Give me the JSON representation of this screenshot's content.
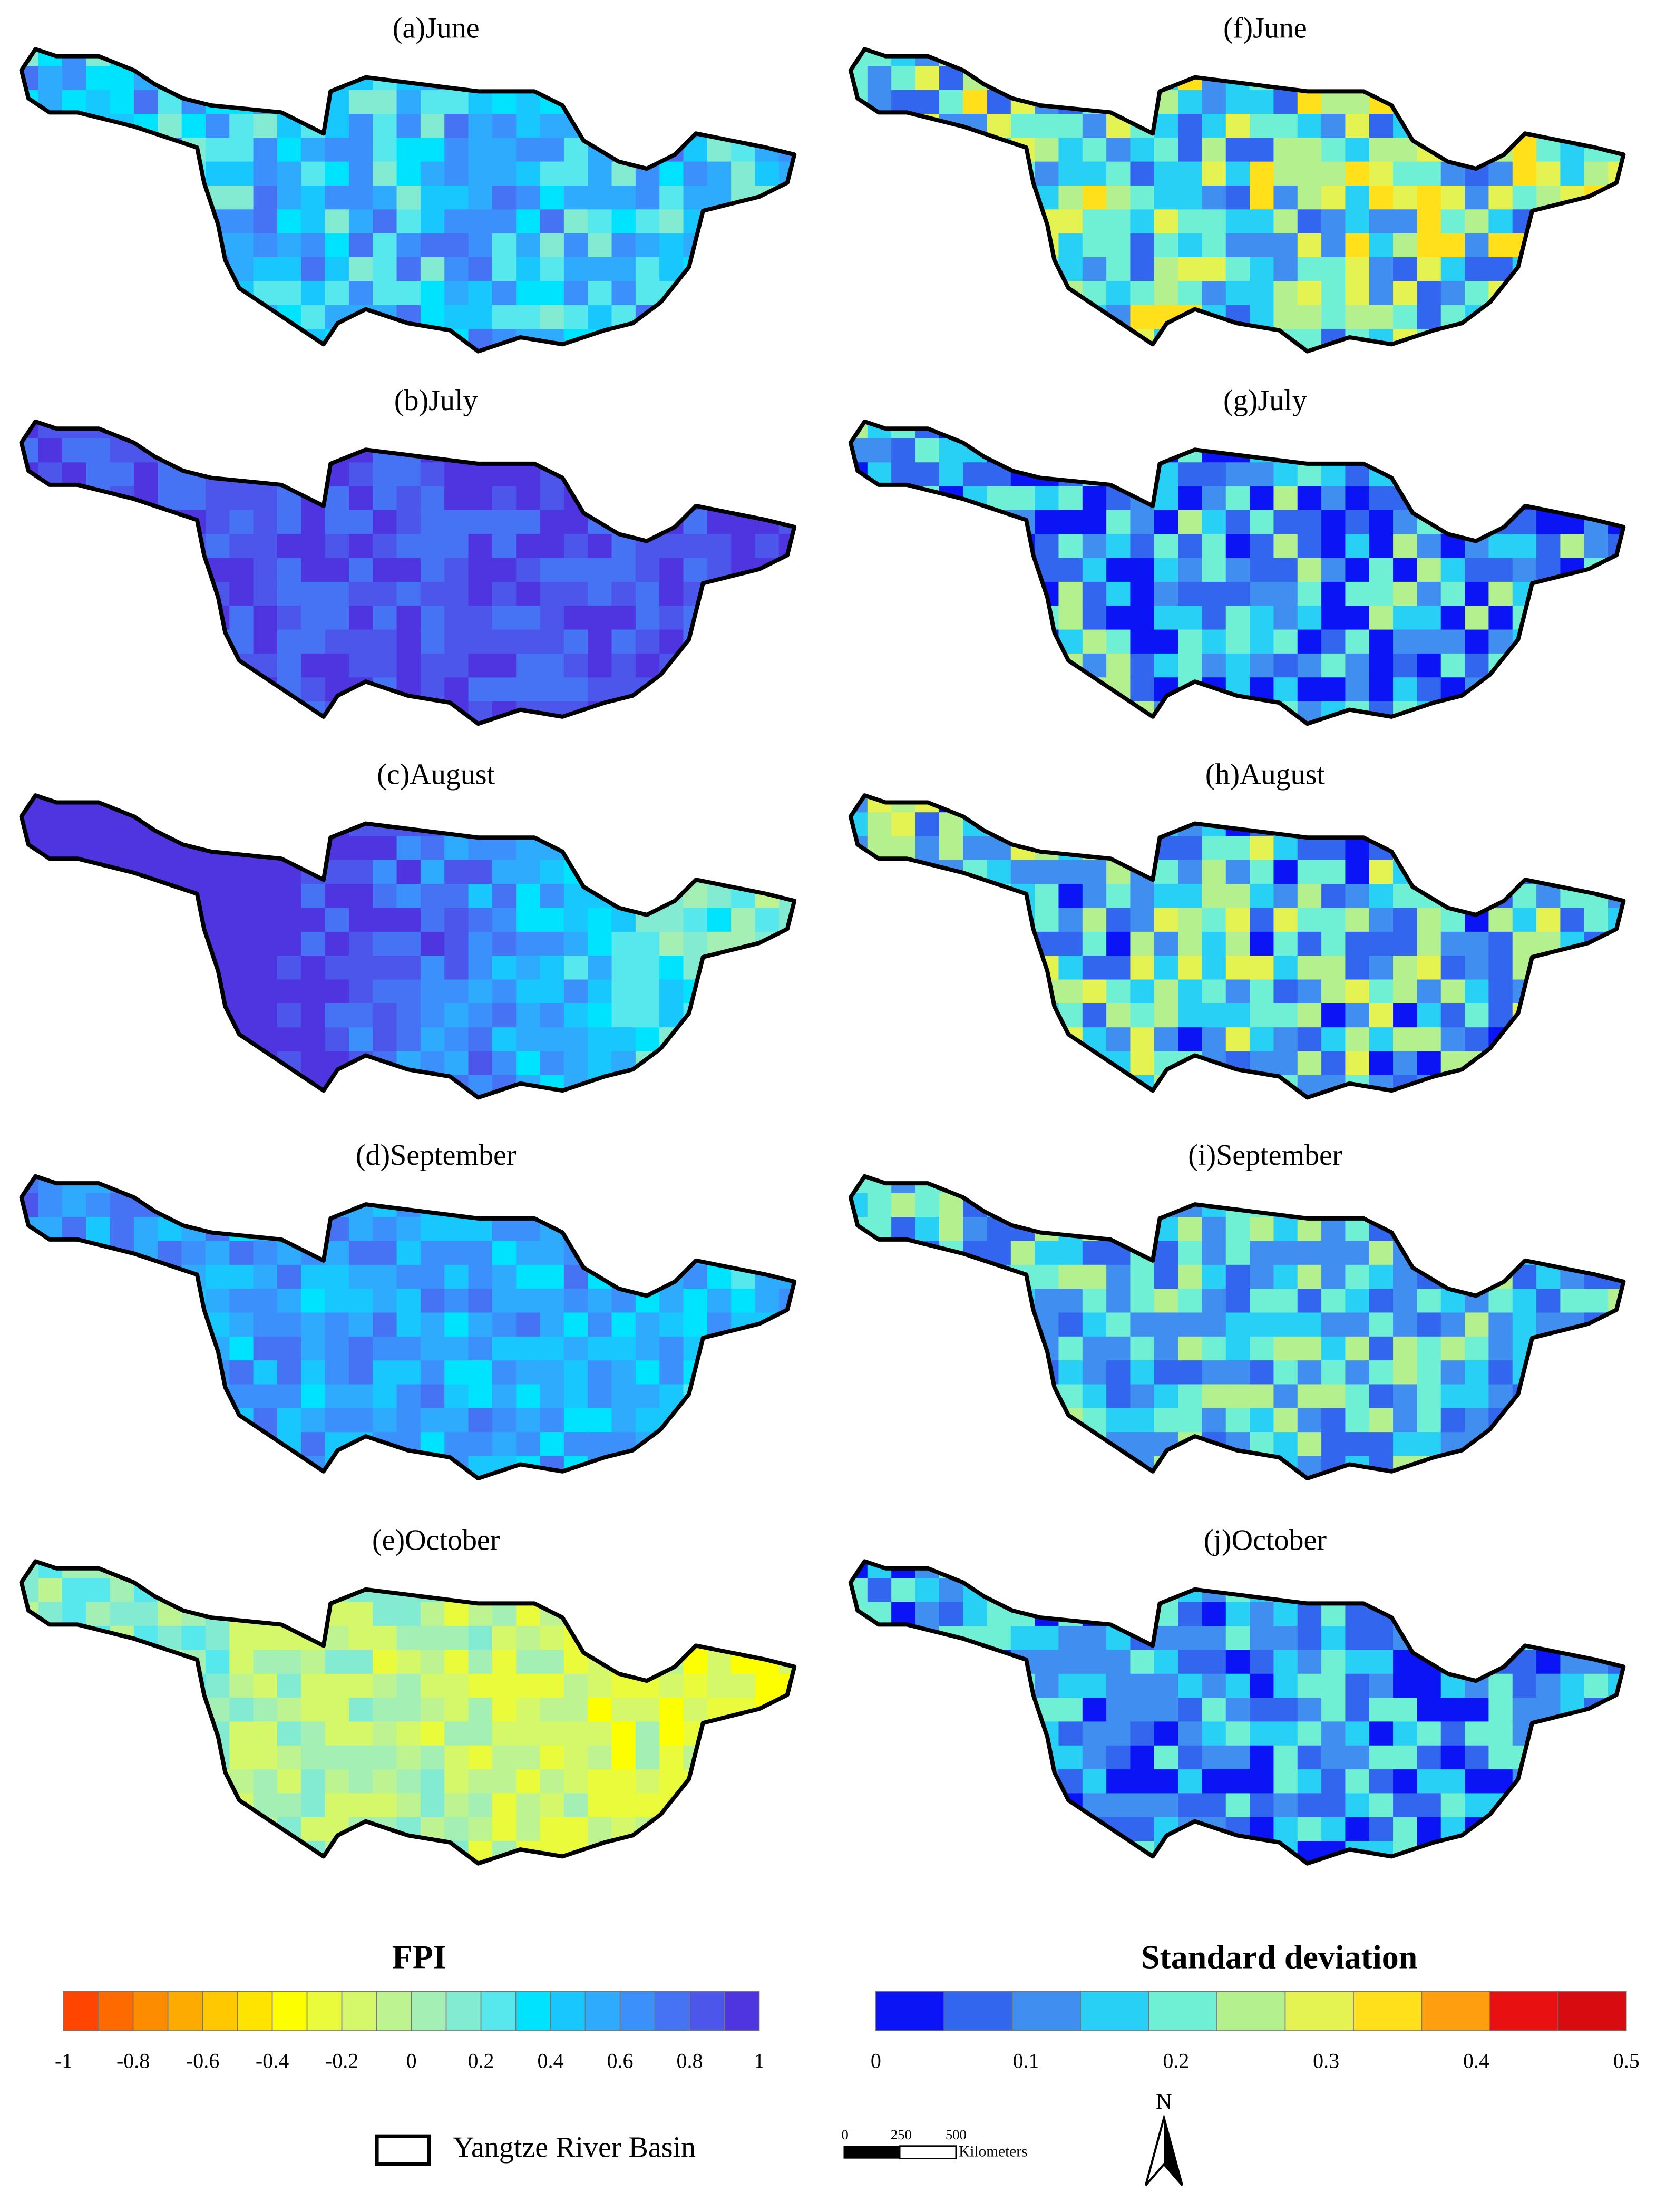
{
  "panels": [
    {
      "title": "(a)June"
    },
    {
      "title": "(b)July"
    },
    {
      "title": "(c)August"
    },
    {
      "title": "(d)September"
    },
    {
      "title": "(e)October"
    },
    {
      "title": "(f)June"
    },
    {
      "title": "(g)July"
    },
    {
      "title": "(h)August"
    },
    {
      "title": "(i)September"
    },
    {
      "title": "(j)October"
    }
  ],
  "legend_fpi": {
    "title": "FPI",
    "lim": [
      -1,
      1
    ],
    "ticks": [
      -1,
      -0.8,
      -0.6,
      -0.4,
      -0.2,
      0,
      0.2,
      0.4,
      0.6,
      0.8,
      1
    ],
    "colors": [
      "#ff4500",
      "#fe6a00",
      "#fe8c00",
      "#feab00",
      "#ffc800",
      "#ffe400",
      "#fdfe00",
      "#e9fb3a",
      "#d5f76a",
      "#bef391",
      "#a4efb4",
      "#84ebd3",
      "#57e8ee",
      "#00e3ff",
      "#18c7fe",
      "#2fabfe",
      "#3c90fb",
      "#4573f4",
      "#4c56ea",
      "#4f35df"
    ]
  },
  "legend_sd": {
    "title": "Standard deviation",
    "lim": [
      0,
      0.5
    ],
    "ticks": [
      0,
      0.1,
      0.2,
      0.3,
      0.4,
      0.5
    ],
    "colors": [
      "#0a14f5",
      "#3366ee",
      "#3f8ef0",
      "#28d0f5",
      "#6ff0d5",
      "#b4f08e",
      "#e4f352",
      "#ffe01a",
      "#ff9f10",
      "#e81010",
      "#d80c10"
    ]
  },
  "basin_legend": "Yangtze River Basin",
  "scale_bar": {
    "ticks": [
      "0",
      "250",
      "500"
    ],
    "unit": "Kilometers"
  },
  "north": "N"
}
